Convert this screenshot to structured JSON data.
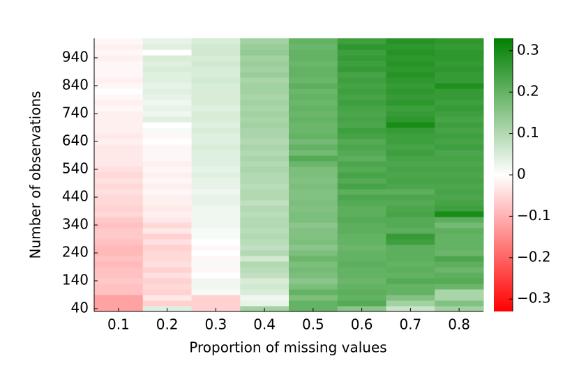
{
  "chart_data": {
    "type": "heatmap",
    "xlabel": "Proportion of missing values",
    "ylabel": "Number of observations",
    "x": [
      0.1,
      0.2,
      0.3,
      0.4,
      0.5,
      0.6,
      0.7,
      0.8
    ],
    "y": [
      40,
      60,
      80,
      100,
      120,
      140,
      160,
      180,
      200,
      220,
      240,
      260,
      280,
      300,
      320,
      340,
      360,
      380,
      400,
      420,
      440,
      460,
      480,
      500,
      520,
      540,
      560,
      580,
      600,
      620,
      640,
      660,
      680,
      700,
      720,
      740,
      760,
      780,
      800,
      820,
      840,
      860,
      880,
      900,
      920,
      940,
      960,
      980,
      1000
    ],
    "z": [
      [
        -0.12,
        0.04,
        -0.06,
        0.12,
        0.2,
        0.15,
        0.07,
        0.12
      ],
      [
        -0.12,
        -0.06,
        -0.06,
        0.03,
        0.2,
        0.22,
        0.12,
        0.16
      ],
      [
        -0.12,
        -0.03,
        -0.06,
        0.02,
        0.17,
        0.2,
        0.16,
        0.11
      ],
      [
        -0.08,
        -0.06,
        0.01,
        0.05,
        0.2,
        0.21,
        0.2,
        0.11
      ],
      [
        -0.08,
        -0.05,
        0.02,
        0.06,
        0.17,
        0.2,
        0.2,
        0.19
      ],
      [
        -0.07,
        -0.06,
        0.02,
        0.05,
        0.15,
        0.19,
        0.22,
        0.22
      ],
      [
        -0.08,
        -0.04,
        0.0,
        0.08,
        0.17,
        0.2,
        0.2,
        0.21
      ],
      [
        -0.08,
        -0.06,
        -0.01,
        0.09,
        0.18,
        0.2,
        0.21,
        0.19
      ],
      [
        -0.09,
        -0.04,
        0.01,
        0.1,
        0.17,
        0.21,
        0.2,
        0.21
      ],
      [
        -0.08,
        -0.05,
        -0.01,
        0.06,
        0.19,
        0.2,
        0.21,
        0.23
      ],
      [
        -0.09,
        -0.05,
        0.0,
        0.1,
        0.17,
        0.2,
        0.21,
        0.19
      ],
      [
        -0.09,
        -0.06,
        -0.01,
        0.08,
        0.15,
        0.19,
        0.21,
        0.2
      ],
      [
        -0.08,
        -0.04,
        0.0,
        0.09,
        0.17,
        0.2,
        0.25,
        0.2
      ],
      [
        -0.07,
        -0.06,
        0.01,
        0.1,
        0.16,
        0.2,
        0.26,
        0.2
      ],
      [
        -0.07,
        -0.03,
        0.01,
        0.09,
        0.16,
        0.21,
        0.21,
        0.21
      ],
      [
        -0.08,
        -0.05,
        0.02,
        0.1,
        0.15,
        0.21,
        0.22,
        0.18
      ],
      [
        -0.07,
        -0.03,
        0.02,
        0.1,
        0.17,
        0.22,
        0.22,
        0.21
      ],
      [
        -0.05,
        -0.02,
        0.02,
        0.09,
        0.17,
        0.21,
        0.24,
        0.3
      ],
      [
        -0.06,
        -0.03,
        0.02,
        0.1,
        0.16,
        0.21,
        0.23,
        0.25
      ],
      [
        -0.05,
        -0.02,
        0.03,
        0.08,
        0.17,
        0.22,
        0.22,
        0.24
      ],
      [
        -0.05,
        -0.02,
        0.03,
        0.1,
        0.16,
        0.23,
        0.23,
        0.23
      ],
      [
        -0.04,
        -0.01,
        0.02,
        0.1,
        0.16,
        0.21,
        0.21,
        0.24
      ],
      [
        -0.05,
        -0.02,
        0.03,
        0.09,
        0.17,
        0.24,
        0.23,
        0.23
      ],
      [
        -0.04,
        -0.01,
        0.03,
        0.1,
        0.16,
        0.22,
        0.24,
        0.24
      ],
      [
        -0.05,
        -0.02,
        0.04,
        0.1,
        0.17,
        0.24,
        0.23,
        0.23
      ],
      [
        -0.04,
        -0.01,
        0.03,
        0.11,
        0.17,
        0.22,
        0.24,
        0.24
      ],
      [
        -0.03,
        -0.02,
        0.04,
        0.1,
        0.19,
        0.23,
        0.23,
        0.23
      ],
      [
        -0.03,
        -0.01,
        0.04,
        0.11,
        0.22,
        0.21,
        0.24,
        0.24
      ],
      [
        -0.03,
        -0.01,
        0.04,
        0.1,
        0.18,
        0.22,
        0.25,
        0.23
      ],
      [
        -0.03,
        -0.01,
        0.05,
        0.11,
        0.2,
        0.23,
        0.24,
        0.25
      ],
      [
        -0.02,
        0.0,
        0.04,
        0.1,
        0.18,
        0.22,
        0.25,
        0.24
      ],
      [
        -0.03,
        -0.01,
        0.04,
        0.11,
        0.2,
        0.24,
        0.25,
        0.25
      ],
      [
        -0.02,
        0.01,
        0.05,
        0.11,
        0.19,
        0.25,
        0.26,
        0.24
      ],
      [
        -0.02,
        0.0,
        0.04,
        0.12,
        0.19,
        0.23,
        0.3,
        0.25
      ],
      [
        -0.02,
        0.04,
        0.05,
        0.11,
        0.2,
        0.24,
        0.27,
        0.24
      ],
      [
        -0.02,
        0.02,
        0.05,
        0.12,
        0.19,
        0.23,
        0.26,
        0.25
      ],
      [
        -0.01,
        0.03,
        0.04,
        0.11,
        0.2,
        0.24,
        0.25,
        0.26
      ],
      [
        -0.02,
        0.02,
        0.05,
        0.12,
        0.19,
        0.25,
        0.27,
        0.25
      ],
      [
        -0.01,
        0.03,
        0.05,
        0.11,
        0.2,
        0.24,
        0.26,
        0.26
      ],
      [
        0.0,
        0.04,
        0.05,
        0.12,
        0.19,
        0.25,
        0.27,
        0.26
      ],
      [
        -0.01,
        0.03,
        0.05,
        0.12,
        0.21,
        0.24,
        0.26,
        0.29
      ],
      [
        -0.02,
        0.04,
        0.06,
        0.11,
        0.19,
        0.25,
        0.27,
        0.26
      ],
      [
        -0.01,
        0.04,
        0.05,
        0.13,
        0.2,
        0.24,
        0.28,
        0.26
      ],
      [
        -0.01,
        0.05,
        0.05,
        0.12,
        0.2,
        0.26,
        0.27,
        0.27
      ],
      [
        -0.01,
        0.04,
        0.06,
        0.13,
        0.19,
        0.25,
        0.28,
        0.26
      ],
      [
        -0.02,
        0.05,
        0.05,
        0.12,
        0.2,
        0.26,
        0.27,
        0.27
      ],
      [
        -0.01,
        0.0,
        0.06,
        0.14,
        0.2,
        0.25,
        0.28,
        0.27
      ],
      [
        -0.02,
        0.04,
        0.06,
        0.13,
        0.19,
        0.27,
        0.27,
        0.26
      ],
      [
        -0.01,
        0.03,
        0.05,
        0.12,
        0.2,
        0.25,
        0.28,
        0.27
      ]
    ],
    "xlim": [
      0.05,
      0.85
    ],
    "ylim": [
      30,
      1010
    ],
    "yticks": [
      40,
      140,
      240,
      340,
      440,
      540,
      640,
      740,
      840,
      940
    ],
    "clim": [
      -0.33,
      0.33
    ],
    "cticks": [
      {
        "value": -0.3,
        "label": "−0.3"
      },
      {
        "value": -0.2,
        "label": "−0.2"
      },
      {
        "value": -0.1,
        "label": "−0.1"
      },
      0,
      0.1,
      0.2,
      0.3
    ],
    "colors": [
      "#ff0000",
      "#ffffff",
      "#008000"
    ]
  }
}
